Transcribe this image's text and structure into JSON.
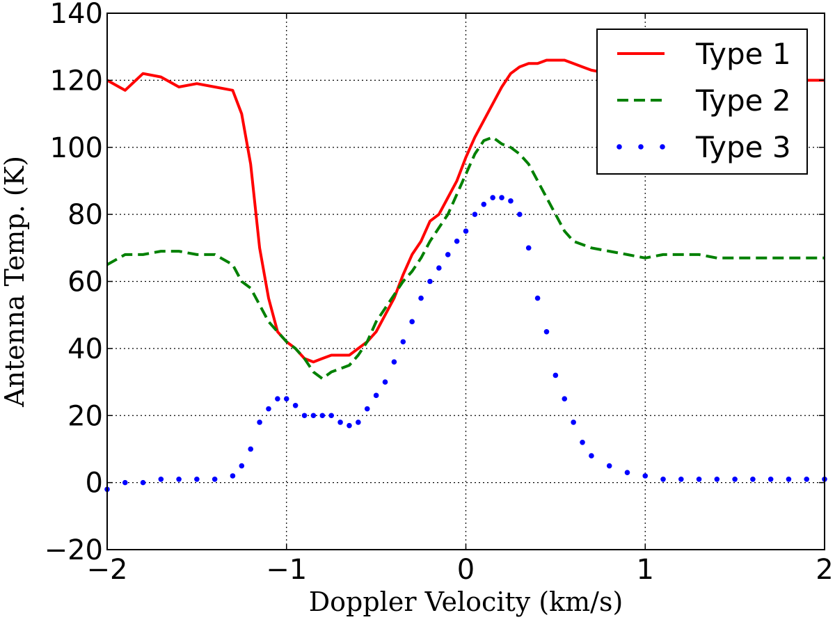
{
  "chart_data": {
    "type": "line",
    "xlabel": "Doppler Velocity (km/s)",
    "ylabel": "Antenna Temp. (K)",
    "xlim": [
      -2,
      2
    ],
    "ylim": [
      -20,
      140
    ],
    "xticks": [
      -2,
      -1,
      0,
      1,
      2
    ],
    "xtick_labels": [
      "−2",
      "−1",
      "0",
      "1",
      "2"
    ],
    "yticks": [
      -20,
      0,
      20,
      40,
      60,
      80,
      100,
      120,
      140
    ],
    "ytick_labels": [
      "−20",
      "0",
      "20",
      "40",
      "60",
      "80",
      "100",
      "120",
      "140"
    ],
    "grid": true,
    "legend_placement": "upper right",
    "x": [
      -2.0,
      -1.9,
      -1.8,
      -1.7,
      -1.6,
      -1.5,
      -1.4,
      -1.3,
      -1.25,
      -1.2,
      -1.15,
      -1.1,
      -1.05,
      -1.0,
      -0.95,
      -0.9,
      -0.85,
      -0.8,
      -0.75,
      -0.7,
      -0.65,
      -0.6,
      -0.55,
      -0.5,
      -0.45,
      -0.4,
      -0.35,
      -0.3,
      -0.25,
      -0.2,
      -0.15,
      -0.1,
      -0.05,
      0.0,
      0.05,
      0.1,
      0.15,
      0.2,
      0.25,
      0.3,
      0.35,
      0.4,
      0.45,
      0.5,
      0.55,
      0.6,
      0.65,
      0.7,
      0.8,
      0.9,
      1.0,
      1.1,
      1.2,
      1.3,
      1.4,
      1.5,
      1.6,
      1.7,
      1.8,
      1.9,
      2.0
    ],
    "series": [
      {
        "name": "Type 1",
        "color": "#ff0000",
        "style": "solid",
        "values": [
          120,
          117,
          122,
          121,
          118,
          119,
          118,
          117,
          110,
          95,
          70,
          55,
          45,
          42,
          40,
          37,
          36,
          37,
          38,
          38,
          38,
          40,
          42,
          45,
          50,
          55,
          62,
          68,
          72,
          78,
          80,
          85,
          90,
          97,
          103,
          108,
          113,
          118,
          122,
          124,
          125,
          125,
          126,
          126,
          126,
          125,
          124,
          123,
          122,
          122,
          121,
          121,
          120,
          120,
          120,
          120,
          120,
          120,
          120,
          120,
          120
        ]
      },
      {
        "name": "Type 2",
        "color": "#008000",
        "style": "dashed",
        "values": [
          65,
          68,
          68,
          69,
          69,
          68,
          68,
          65,
          60,
          58,
          53,
          48,
          45,
          42,
          40,
          37,
          33,
          31,
          33,
          34,
          35,
          38,
          42,
          48,
          52,
          56,
          60,
          63,
          67,
          72,
          76,
          80,
          86,
          92,
          98,
          102,
          103,
          101,
          100,
          98,
          95,
          90,
          85,
          80,
          75,
          72,
          71,
          70,
          69,
          68,
          67,
          68,
          68,
          68,
          67,
          67,
          67,
          67,
          67,
          67,
          67
        ]
      },
      {
        "name": "Type 3",
        "color": "#0000ff",
        "style": "dotted",
        "values": [
          -2,
          0,
          0,
          1,
          1,
          1,
          1,
          2,
          5,
          10,
          18,
          22,
          25,
          25,
          23,
          20,
          20,
          20,
          20,
          18,
          17,
          18,
          22,
          26,
          30,
          36,
          42,
          48,
          55,
          60,
          64,
          68,
          72,
          75,
          80,
          83,
          85,
          85,
          84,
          80,
          70,
          55,
          45,
          32,
          25,
          18,
          12,
          8,
          5,
          3,
          2,
          1,
          1,
          1,
          1,
          1,
          1,
          1,
          1,
          1,
          1
        ]
      }
    ]
  }
}
